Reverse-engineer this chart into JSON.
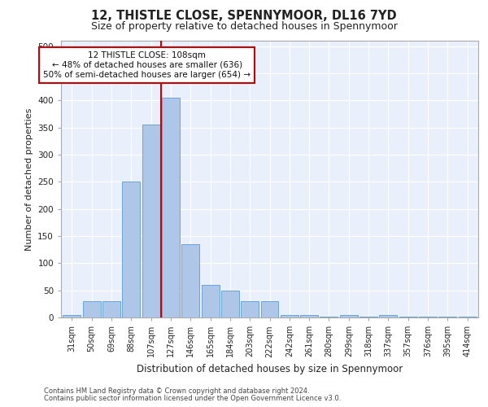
{
  "title1": "12, THISTLE CLOSE, SPENNYMOOR, DL16 7YD",
  "title2": "Size of property relative to detached houses in Spennymoor",
  "xlabel": "Distribution of detached houses by size in Spennymoor",
  "ylabel": "Number of detached properties",
  "categories": [
    "31sqm",
    "50sqm",
    "69sqm",
    "88sqm",
    "107sqm",
    "127sqm",
    "146sqm",
    "165sqm",
    "184sqm",
    "203sqm",
    "222sqm",
    "242sqm",
    "261sqm",
    "280sqm",
    "299sqm",
    "318sqm",
    "337sqm",
    "357sqm",
    "376sqm",
    "395sqm",
    "414sqm"
  ],
  "values": [
    5,
    30,
    30,
    250,
    355,
    405,
    135,
    60,
    50,
    30,
    30,
    5,
    5,
    2,
    5,
    2,
    5,
    2,
    2,
    2,
    2
  ],
  "bar_color": "#aec6e8",
  "bar_edge_color": "#5b9bd5",
  "background_color": "#eaf0fb",
  "grid_color": "#ffffff",
  "vline_color": "#cc0000",
  "annotation_line1": "12 THISTLE CLOSE: 108sqm",
  "annotation_line2": "← 48% of detached houses are smaller (636)",
  "annotation_line3": "50% of semi-detached houses are larger (654) →",
  "annotation_box_color": "#ffffff",
  "annotation_box_edge": "#cc0000",
  "ylim": [
    0,
    510
  ],
  "yticks": [
    0,
    50,
    100,
    150,
    200,
    250,
    300,
    350,
    400,
    450,
    500
  ],
  "footer1": "Contains HM Land Registry data © Crown copyright and database right 2024.",
  "footer2": "Contains public sector information licensed under the Open Government Licence v3.0."
}
